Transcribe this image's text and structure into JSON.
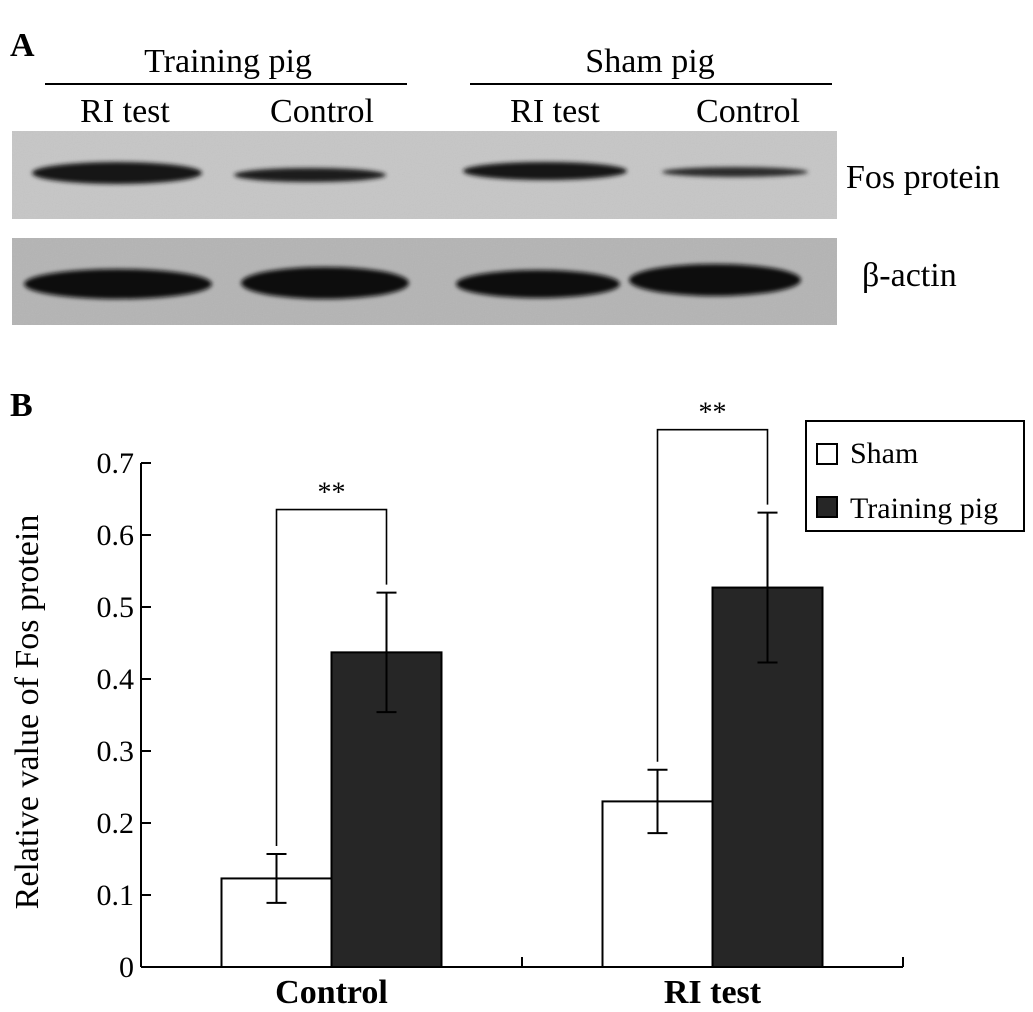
{
  "panel_a": {
    "letter": "A",
    "groups": [
      {
        "label": "Training pig",
        "lanes": [
          "RI test",
          "Control"
        ]
      },
      {
        "label": "Sham pig",
        "lanes": [
          "RI test",
          "Control"
        ]
      }
    ],
    "blots": [
      {
        "label": "Fos protein",
        "band_intensity": [
          0.9,
          0.75,
          0.85,
          0.55
        ]
      },
      {
        "label": "β-actin",
        "band_intensity": [
          1.0,
          1.0,
          1.0,
          1.0
        ]
      }
    ]
  },
  "panel_b": {
    "letter": "B"
  },
  "chart_data": {
    "type": "bar",
    "categories": [
      "Control",
      "RI test"
    ],
    "series": [
      {
        "name": "Sham",
        "values": [
          0.123,
          0.23
        ],
        "errors": [
          0.034,
          0.044
        ],
        "color": "#ffffff"
      },
      {
        "name": "Training pig",
        "values": [
          0.437,
          0.527
        ],
        "errors": [
          0.083,
          0.104
        ],
        "color": "#262626"
      }
    ],
    "title": "",
    "xlabel": "",
    "ylabel": "Relative value of Fos protein",
    "ylim": [
      0,
      0.7
    ],
    "yticks": [
      "0",
      "0.1",
      "0.2",
      "0.3",
      "0.4",
      "0.5",
      "0.6",
      "0.7"
    ],
    "significance": [
      "**",
      "**"
    ],
    "legend_position": "top-right",
    "grid": false
  }
}
